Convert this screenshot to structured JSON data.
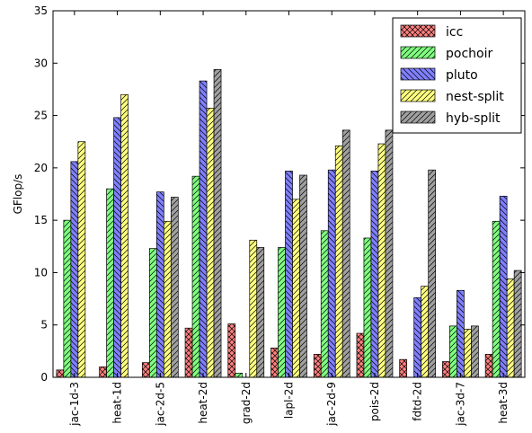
{
  "chart_data": {
    "type": "bar",
    "title": "",
    "xlabel": "",
    "ylabel": "GFlop/s",
    "ylim": [
      0,
      35
    ],
    "yticks": [
      0,
      5,
      10,
      15,
      20,
      25,
      30,
      35
    ],
    "grid": false,
    "legend_position": "top-right",
    "categories": [
      "jac-1d-3",
      "heat-1d",
      "jac-2d-5",
      "heat-2d",
      "grad-2d",
      "lapl-2d",
      "jac-2d-9",
      "pois-2d",
      "fdtd-2d",
      "jac-3d-7",
      "heat-3d"
    ],
    "series": [
      {
        "name": "icc",
        "color": "#ff8080",
        "hatch": "x",
        "values": [
          0.7,
          1.0,
          1.4,
          4.7,
          5.1,
          2.8,
          2.2,
          4.2,
          1.7,
          1.5,
          2.2
        ]
      },
      {
        "name": "pochoir",
        "color": "#80ff80",
        "hatch": "/",
        "values": [
          15.0,
          18.0,
          12.3,
          19.2,
          0.4,
          12.4,
          14.0,
          13.3,
          0,
          4.9,
          14.9
        ]
      },
      {
        "name": "pluto",
        "color": "#8080ff",
        "hatch": "\\",
        "values": [
          20.6,
          24.8,
          17.7,
          28.3,
          0,
          19.7,
          19.8,
          19.7,
          7.6,
          8.3,
          17.3
        ]
      },
      {
        "name": "nest-split",
        "color": "#ffff80",
        "hatch": "/",
        "values": [
          22.5,
          27.0,
          14.9,
          25.7,
          13.1,
          17.0,
          22.1,
          22.3,
          8.7,
          4.6,
          9.4
        ]
      },
      {
        "name": "hyb-split",
        "color": "#a0a0a0",
        "hatch": "/",
        "values": [
          0,
          0,
          17.2,
          29.4,
          12.4,
          19.3,
          23.6,
          23.6,
          19.8,
          4.9,
          10.2
        ]
      }
    ]
  }
}
